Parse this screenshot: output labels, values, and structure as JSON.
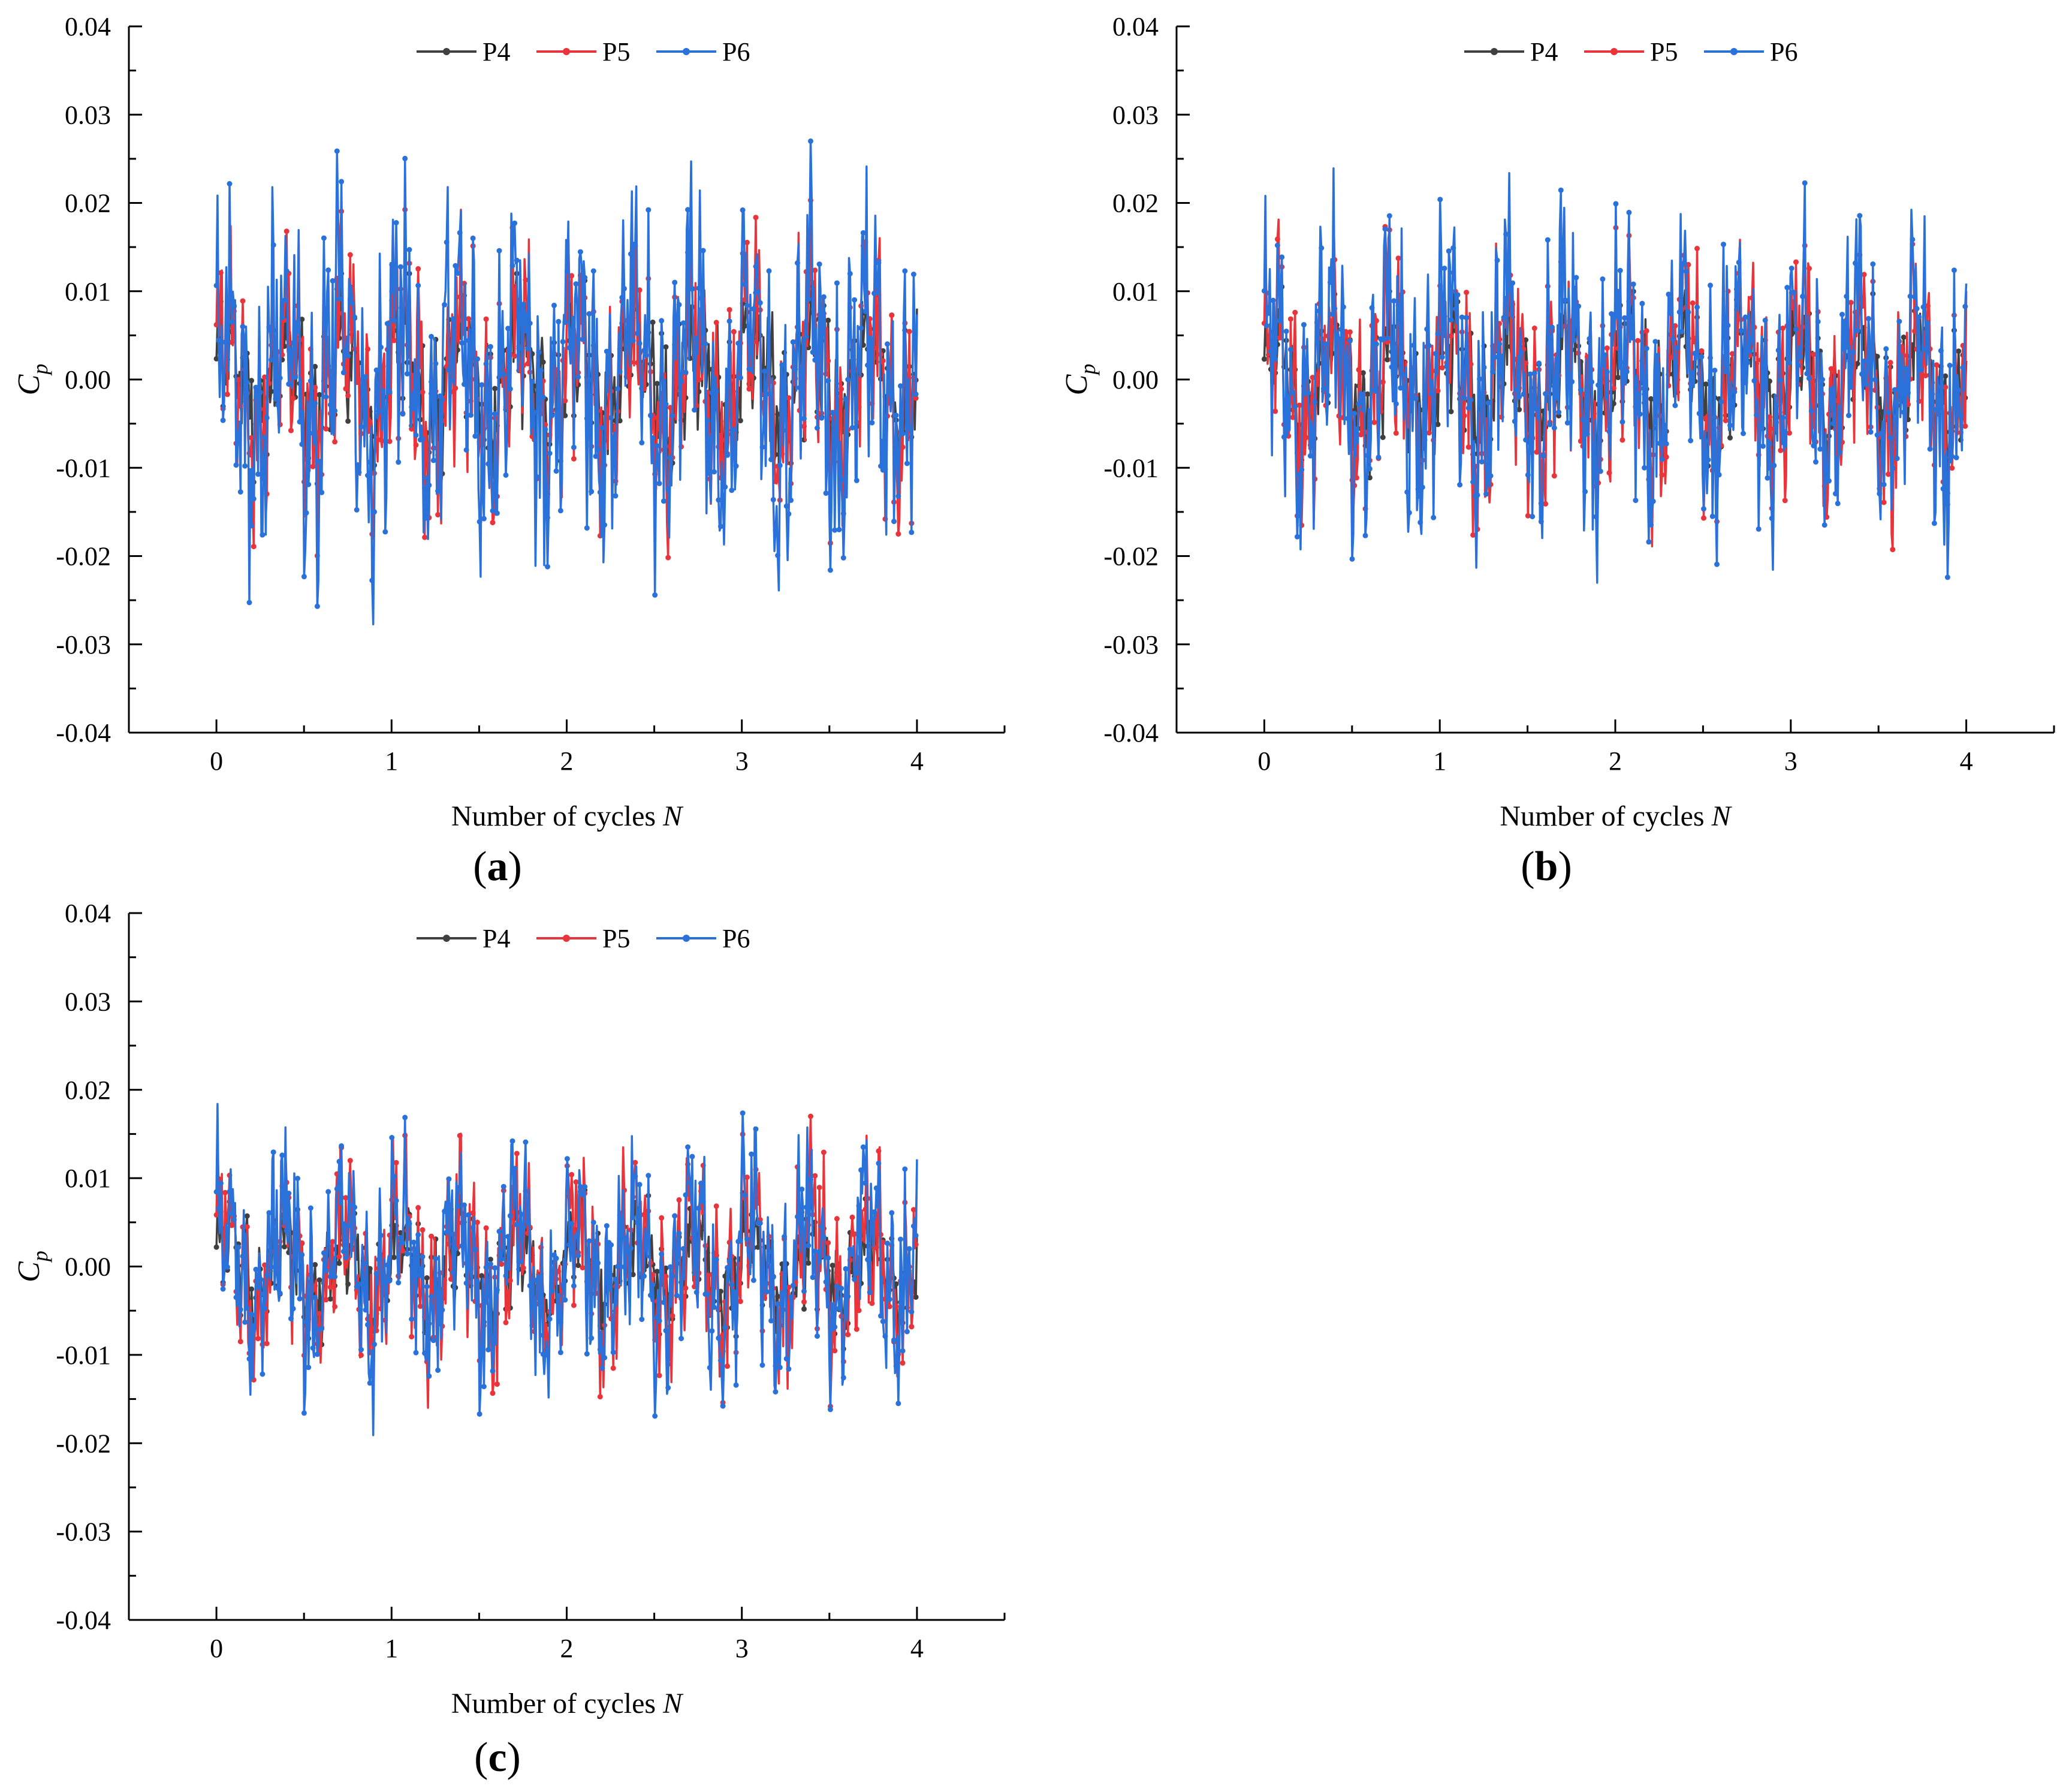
{
  "figure": {
    "series_colors": {
      "P4": "#404040",
      "P5": "#e8343a",
      "P6": "#2a72d9"
    }
  },
  "chart_data": [
    {
      "type": "line",
      "panel_label": "(a)",
      "title": "",
      "xlabel": "Number of cycles N",
      "ylabel": "Cp",
      "xlim": [
        -0.5,
        4.5
      ],
      "ylim": [
        -0.04,
        0.04
      ],
      "x_ticks": [
        "0",
        "1",
        "2",
        "3",
        "4"
      ],
      "y_ticks": [
        "-0.04",
        "-0.03",
        "-0.02",
        "-0.01",
        "0.00",
        "0.01",
        "0.02",
        "0.03",
        "0.04"
      ],
      "grid": false,
      "legend_position": "top-center",
      "series": [
        {
          "name": "P4",
          "color": "#404040",
          "x_range": [
            0,
            4
          ],
          "points": 640,
          "approx_min": -0.015,
          "approx_max": 0.012,
          "mean": 0.0
        },
        {
          "name": "P5",
          "color": "#e8343a",
          "x_range": [
            0,
            4
          ],
          "points": 640,
          "approx_min": -0.022,
          "approx_max": 0.021,
          "mean": 0.0
        },
        {
          "name": "P6",
          "color": "#2a72d9",
          "x_range": [
            0,
            4
          ],
          "points": 640,
          "approx_min": -0.028,
          "approx_max": 0.027,
          "mean": 0.0
        }
      ]
    },
    {
      "type": "line",
      "panel_label": "(b)",
      "title": "",
      "xlabel": "Number of cycles N",
      "ylabel": "Cp",
      "xlim": [
        -0.5,
        4.5
      ],
      "ylim": [
        -0.04,
        0.04
      ],
      "x_ticks": [
        "0",
        "1",
        "2",
        "3",
        "4"
      ],
      "y_ticks": [
        "-0.04",
        "-0.03",
        "-0.02",
        "-0.01",
        "0.00",
        "0.01",
        "0.02",
        "0.03",
        "0.04"
      ],
      "grid": false,
      "legend_position": "top-center",
      "series": [
        {
          "name": "P4",
          "color": "#404040",
          "x_range": [
            0,
            4
          ],
          "points": 640,
          "approx_min": -0.013,
          "approx_max": 0.012,
          "mean": 0.0
        },
        {
          "name": "P5",
          "color": "#e8343a",
          "x_range": [
            0,
            4
          ],
          "points": 640,
          "approx_min": -0.021,
          "approx_max": 0.02,
          "mean": 0.0
        },
        {
          "name": "P6",
          "color": "#2a72d9",
          "x_range": [
            0,
            4
          ],
          "points": 640,
          "approx_min": -0.025,
          "approx_max": 0.024,
          "mean": 0.0
        }
      ]
    },
    {
      "type": "line",
      "panel_label": "(c)",
      "title": "",
      "xlabel": "Number of cycles N",
      "ylabel": "Cp",
      "xlim": [
        -0.5,
        4.5
      ],
      "ylim": [
        -0.04,
        0.04
      ],
      "x_ticks": [
        "0",
        "1",
        "2",
        "3",
        "4"
      ],
      "y_ticks": [
        "-0.04",
        "-0.03",
        "-0.02",
        "-0.01",
        "0.00",
        "0.01",
        "0.02",
        "0.03",
        "0.04"
      ],
      "grid": false,
      "legend_position": "top-center",
      "series": [
        {
          "name": "P4",
          "color": "#404040",
          "x_range": [
            0,
            4
          ],
          "points": 640,
          "approx_min": -0.011,
          "approx_max": 0.009,
          "mean": 0.0
        },
        {
          "name": "P5",
          "color": "#e8343a",
          "x_range": [
            0,
            4
          ],
          "points": 640,
          "approx_min": -0.018,
          "approx_max": 0.017,
          "mean": 0.0
        },
        {
          "name": "P6",
          "color": "#2a72d9",
          "x_range": [
            0,
            4
          ],
          "points": 640,
          "approx_min": -0.02,
          "approx_max": 0.02,
          "mean": 0.0
        }
      ]
    }
  ]
}
